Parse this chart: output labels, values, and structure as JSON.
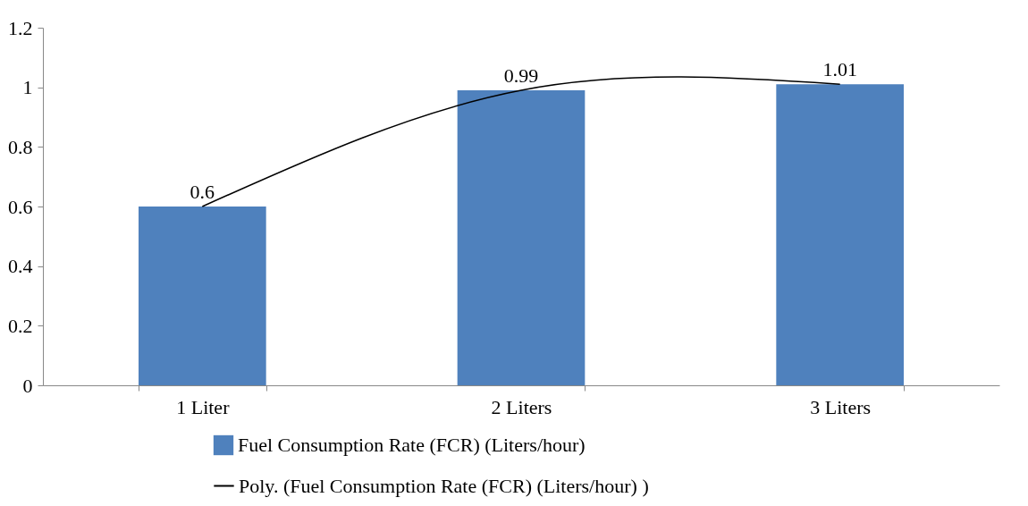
{
  "chart_data": {
    "type": "bar",
    "categories": [
      "1 Liter",
      "2 Liters",
      "3 Liters"
    ],
    "series": [
      {
        "name": "Fuel Consumption Rate (FCR) (Liters/hour)",
        "color": "#4f81bd",
        "values": [
          0.6,
          0.99,
          1.01
        ],
        "value_labels": [
          "0.6",
          "0.99",
          "1.01"
        ]
      },
      {
        "name": "Poly. (Fuel Consumption Rate (FCR) (Liters/hour) )",
        "type": "line",
        "color": "#000000",
        "values": [
          0.6,
          0.99,
          1.01
        ]
      }
    ],
    "ylim": [
      0,
      1.2
    ],
    "yticks": [
      0,
      0.2,
      0.4,
      0.6,
      0.8,
      1,
      1.2
    ],
    "grid": false,
    "legend": "bottom"
  }
}
